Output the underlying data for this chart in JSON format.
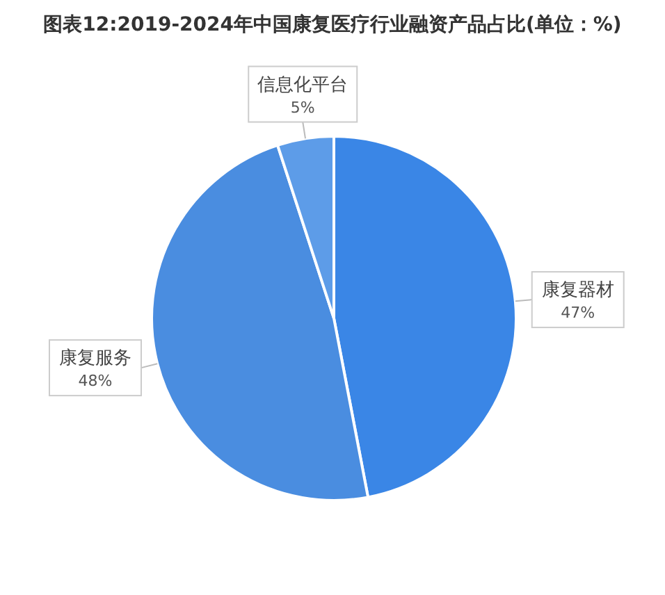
{
  "chart_data": {
    "type": "pie",
    "title": "图表12:2019-2024年中国康复医疗行业融资产品占比(单位：%)",
    "categories": [
      "康复器材",
      "康复服务",
      "信息化平台"
    ],
    "values": [
      47,
      48,
      5
    ],
    "value_labels": [
      "47%",
      "48%",
      "5%"
    ],
    "colors": [
      "#3a86e6",
      "#4a8de0",
      "#5d9ce8"
    ]
  }
}
